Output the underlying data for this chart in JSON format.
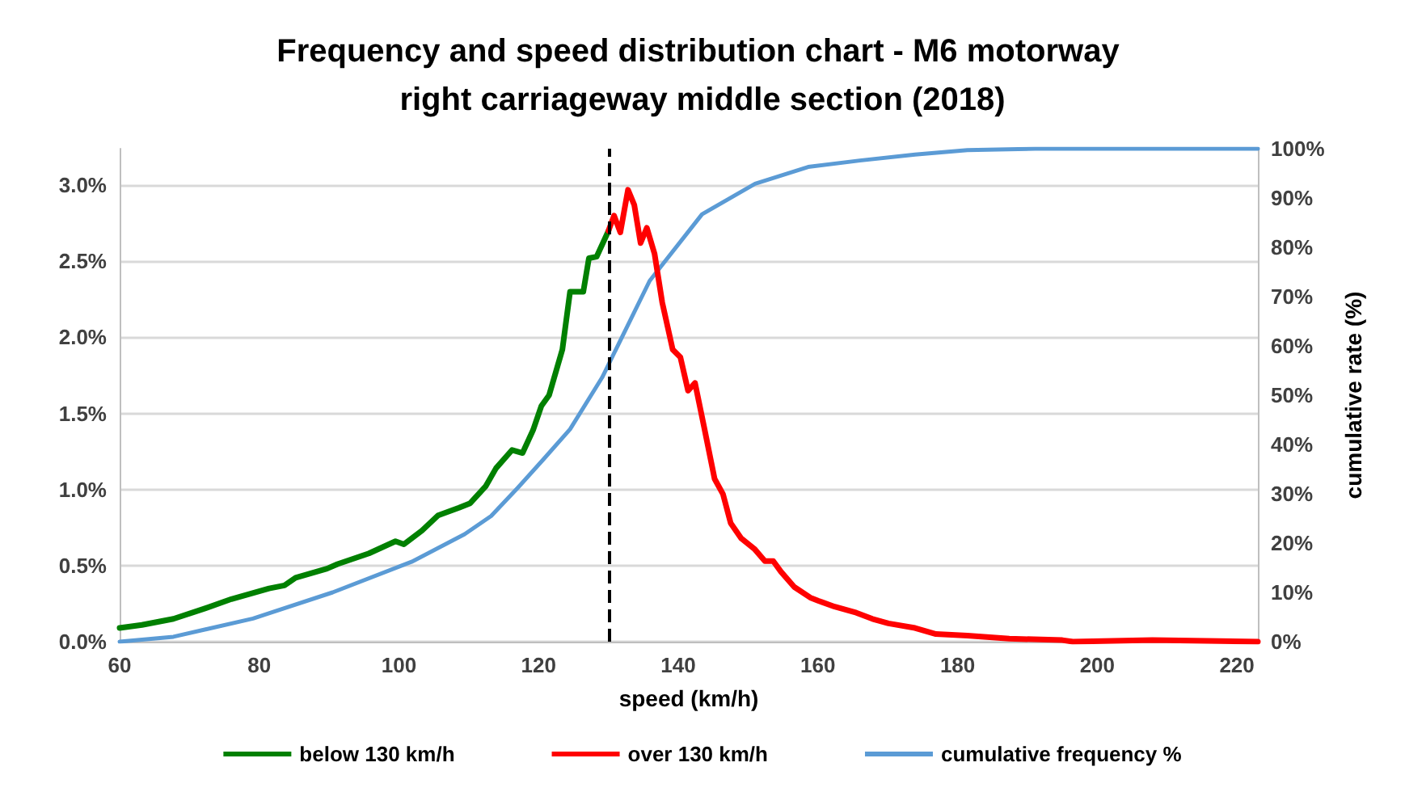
{
  "chart_data": {
    "type": "line",
    "title": "Frequency and speed distribution chart - M6 motorway right carriageway middle section (2018)",
    "xlabel": "speed (km/h)",
    "y2label": "cumulative rate (%)",
    "xlim": [
      60,
      223
    ],
    "xticks": [
      60,
      80,
      100,
      120,
      140,
      160,
      180,
      200,
      220
    ],
    "ylim": [
      0,
      3.24
    ],
    "yticks": [
      {
        "value": 0,
        "label": "0.0%"
      },
      {
        "value": 0.5,
        "label": "0.5%"
      },
      {
        "value": 1,
        "label": "1.0%"
      },
      {
        "value": 1.5,
        "label": "1.5%"
      },
      {
        "value": 2,
        "label": "2.0%"
      },
      {
        "value": 2.5,
        "label": "2.5%"
      },
      {
        "value": 3,
        "label": "3.0%"
      }
    ],
    "y2lim": [
      0,
      100
    ],
    "y2ticks": [
      {
        "value": 0,
        "label": "0%"
      },
      {
        "value": 10,
        "label": "10%"
      },
      {
        "value": 20,
        "label": "20%"
      },
      {
        "value": 30,
        "label": "30%"
      },
      {
        "value": 40,
        "label": "40%"
      },
      {
        "value": 50,
        "label": "50%"
      },
      {
        "value": 60,
        "label": "60%"
      },
      {
        "value": 70,
        "label": "70%"
      },
      {
        "value": 80,
        "label": "80%"
      },
      {
        "value": 90,
        "label": "90%"
      },
      {
        "value": 100,
        "label": "100%"
      }
    ],
    "grid": "y",
    "legend": "bottom",
    "marker": "none",
    "line_style": "solid",
    "ref_lines": [
      {
        "axis": "x",
        "value": 130,
        "color": "#000000",
        "line_style": "dashed"
      }
    ],
    "series": [
      {
        "name": "below 130 km/h",
        "color": "#008000",
        "x": [
          60,
          63.2,
          67.7,
          72.3,
          76,
          81.4,
          83.6,
          85.2,
          89.7,
          91.2,
          95.7,
          99.5,
          100.7,
          103.3,
          105.6,
          108.6,
          110.2,
          112.4,
          113.9,
          116.2,
          117.7,
          119.2,
          120.4,
          121.5,
          123.4,
          124.5,
          126.4,
          127.2,
          128.3,
          130
        ],
        "values": [
          0.09,
          0.11,
          0.15,
          0.22,
          0.28,
          0.35,
          0.37,
          0.42,
          0.48,
          0.51,
          0.58,
          0.66,
          0.64,
          0.73,
          0.83,
          0.88,
          0.91,
          1.02,
          1.14,
          1.26,
          1.24,
          1.39,
          1.55,
          1.62,
          1.92,
          2.3,
          2.3,
          2.52,
          2.53,
          2.7
        ]
      },
      {
        "name": "over 130 km/h",
        "color": "#ff0000",
        "x": [
          130,
          130.8,
          131.7,
          132.8,
          133.7,
          134.6,
          135.5,
          136.6,
          137.7,
          139.2,
          140.3,
          141.4,
          142.4,
          143.7,
          145.2,
          146.4,
          147.5,
          149,
          150.9,
          152.4,
          153.6,
          154.7,
          156.6,
          158.9,
          160,
          162.4,
          165.5,
          167.8,
          170.1,
          173.9,
          176.9,
          181.4,
          187.4,
          195,
          196.5,
          207.9,
          223
        ],
        "values": [
          2.7,
          2.8,
          2.69,
          2.97,
          2.87,
          2.62,
          2.72,
          2.55,
          2.23,
          1.92,
          1.87,
          1.65,
          1.7,
          1.41,
          1.07,
          0.97,
          0.78,
          0.68,
          0.61,
          0.53,
          0.53,
          0.46,
          0.36,
          0.29,
          0.27,
          0.23,
          0.19,
          0.15,
          0.12,
          0.09,
          0.05,
          0.04,
          0.02,
          0.01,
          0,
          0.01,
          0
        ]
      },
      {
        "name": "cumulative frequency %",
        "color": "#5b9bd5",
        "axis": "y2",
        "x": [
          60,
          67.7,
          79.1,
          90.5,
          101.8,
          109.4,
          113.2,
          117,
          120.7,
          124.5,
          129.1,
          135.9,
          143.4,
          151,
          158.6,
          166,
          173.9,
          181.4,
          191.1,
          223
        ],
        "values": [
          0,
          1,
          4.7,
          10,
          16.2,
          21.8,
          25.5,
          31.2,
          37,
          43.1,
          53.6,
          73.2,
          86.7,
          92.9,
          96.3,
          97.6,
          98.8,
          99.7,
          100,
          100
        ]
      }
    ]
  }
}
